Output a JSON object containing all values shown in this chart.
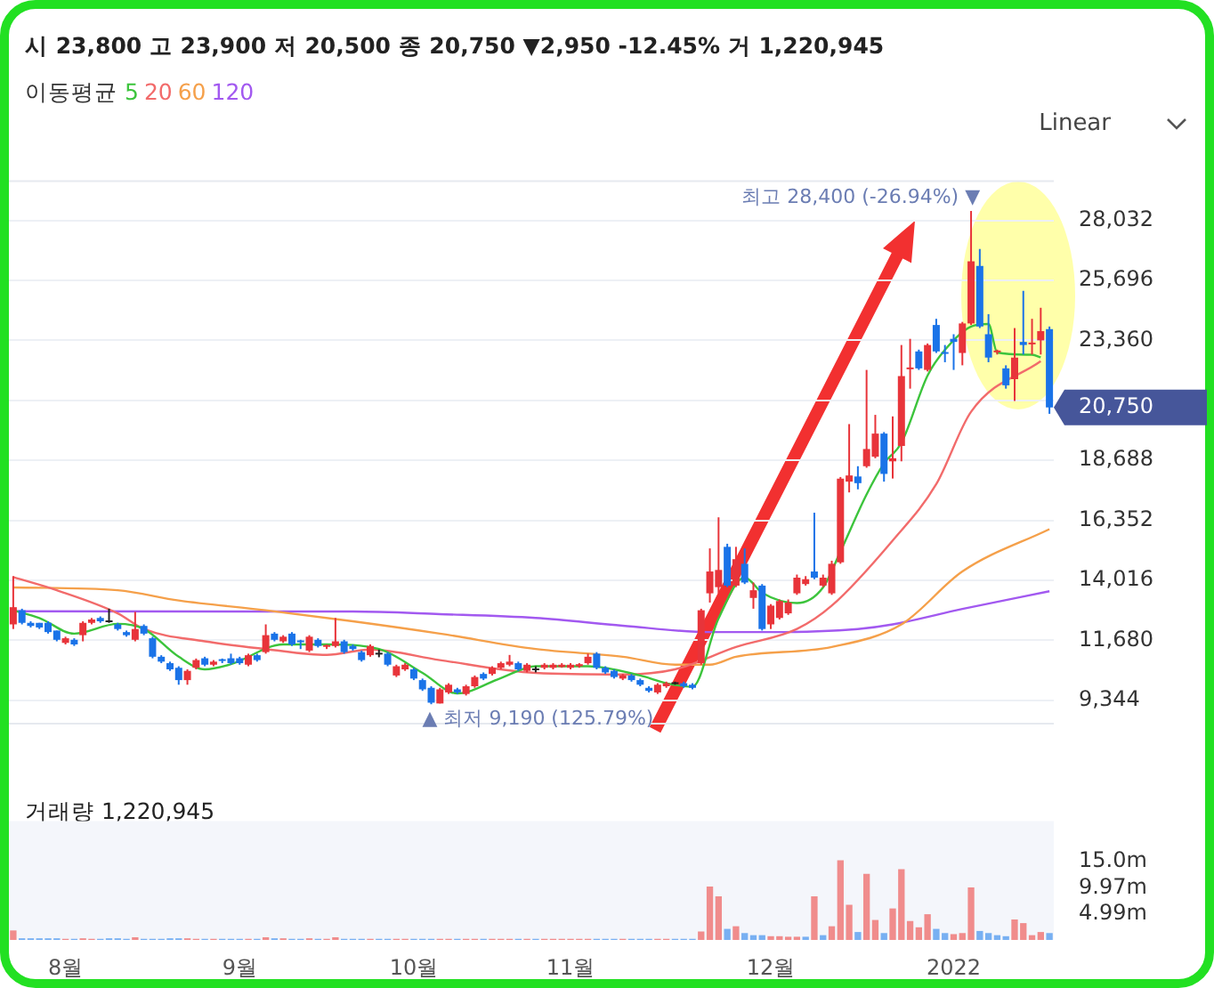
{
  "chart_data": [
    {
      "type": "candlestick",
      "subtitle": "시 23,800 고 23,900 저 20,500 종 20,750 ▼2,950 -12.45% 거 1,220,945",
      "legend_title": "이동평균",
      "legend": "top left",
      "categories": [
        null,
        null,
        null,
        null,
        null,
        null,
        null,
        null,
        null,
        null,
        null,
        null,
        null,
        null,
        null,
        null,
        null,
        null,
        null,
        null,
        null,
        null,
        null,
        null,
        null,
        null,
        null,
        null,
        null,
        null,
        null,
        null,
        null,
        null,
        null,
        null,
        null,
        null,
        null,
        null,
        null,
        null,
        null,
        null,
        null,
        null,
        null,
        null,
        null,
        null,
        null,
        null,
        null,
        null,
        null,
        null,
        null,
        null,
        null,
        null,
        null,
        null,
        null,
        null,
        null,
        null,
        null,
        null,
        null,
        null,
        null,
        null,
        null,
        null,
        null,
        null,
        null,
        null,
        null,
        null,
        null,
        null,
        null,
        null,
        null,
        null,
        null,
        null,
        null,
        null,
        null,
        null,
        null,
        null,
        null,
        null,
        null,
        null,
        null,
        null,
        null,
        null,
        null,
        null,
        null,
        null,
        null,
        null,
        null,
        null,
        null,
        null,
        null,
        null,
        null,
        null,
        null,
        null,
        null,
        null
      ],
      "ohlc": [
        [
          12300,
          14180,
          12120,
          12970
        ],
        [
          12850,
          12910,
          12300,
          12360
        ],
        [
          12360,
          12420,
          12180,
          12240
        ],
        [
          12360,
          12360,
          12120,
          12180
        ],
        [
          12360,
          12420,
          11940,
          12000
        ],
        [
          12060,
          12060,
          11640,
          11700
        ],
        [
          11580,
          11820,
          11520,
          11760
        ],
        [
          11700,
          11760,
          11460,
          11520
        ],
        [
          11880,
          12420,
          11640,
          12360
        ],
        [
          12360,
          12550,
          12300,
          12490
        ],
        [
          12550,
          12610,
          12360,
          12420
        ],
        [
          12420,
          12910,
          12360,
          12420
        ],
        [
          12300,
          12360,
          12060,
          12120
        ],
        [
          12000,
          12060,
          11820,
          11880
        ],
        [
          11700,
          12790,
          11640,
          12120
        ],
        [
          12240,
          12300,
          11880,
          11940
        ],
        [
          11760,
          11820,
          10980,
          11040
        ],
        [
          11040,
          11100,
          10790,
          10850
        ],
        [
          10790,
          10850,
          10490,
          10550
        ],
        [
          10610,
          10670,
          9950,
          10130
        ],
        [
          10130,
          10550,
          9950,
          10490
        ],
        [
          10610,
          10970,
          10550,
          10910
        ],
        [
          10980,
          11040,
          10670,
          10730
        ],
        [
          10730,
          10910,
          10670,
          10850
        ],
        [
          10910,
          10970,
          10790,
          10850
        ],
        [
          10980,
          11160,
          10730,
          10790
        ],
        [
          10980,
          11040,
          10730,
          10790
        ],
        [
          10730,
          11160,
          10670,
          11100
        ],
        [
          11100,
          11160,
          10850,
          10910
        ],
        [
          11220,
          12300,
          11160,
          11880
        ],
        [
          11940,
          12000,
          11640,
          11700
        ],
        [
          11640,
          11880,
          11580,
          11820
        ],
        [
          11940,
          12000,
          11460,
          11520
        ],
        [
          11640,
          11700,
          11340,
          11580
        ],
        [
          11280,
          11880,
          11220,
          11820
        ],
        [
          11700,
          11760,
          11400,
          11460
        ],
        [
          11400,
          11520,
          11340,
          11460
        ],
        [
          11460,
          12550,
          11400,
          11640
        ],
        [
          11640,
          11700,
          11160,
          11220
        ],
        [
          11460,
          11520,
          11280,
          11340
        ],
        [
          11220,
          11280,
          10850,
          10910
        ],
        [
          11100,
          11520,
          11040,
          11460
        ],
        [
          11160,
          11320,
          11020,
          11160
        ],
        [
          11160,
          11220,
          10670,
          10730
        ],
        [
          10310,
          10730,
          10250,
          10670
        ],
        [
          10550,
          10790,
          10490,
          10730
        ],
        [
          10550,
          10610,
          10130,
          10190
        ],
        [
          10130,
          10190,
          9710,
          9770
        ],
        [
          9830,
          9890,
          9190,
          9250
        ],
        [
          9220,
          9830,
          9220,
          9770
        ],
        [
          9650,
          10010,
          9590,
          9950
        ],
        [
          9770,
          9830,
          9590,
          9650
        ],
        [
          9590,
          9950,
          9530,
          9890
        ],
        [
          9890,
          10310,
          9830,
          10250
        ],
        [
          10370,
          10430,
          10130,
          10190
        ],
        [
          10370,
          10670,
          10310,
          10610
        ],
        [
          10610,
          10850,
          10550,
          10790
        ],
        [
          10730,
          11110,
          10670,
          10850
        ],
        [
          10790,
          10850,
          10490,
          10550
        ],
        [
          10490,
          10790,
          10430,
          10730
        ],
        [
          10550,
          10670,
          10430,
          10550
        ],
        [
          10610,
          10790,
          10550,
          10730
        ],
        [
          10610,
          10790,
          10550,
          10730
        ],
        [
          10640,
          10790,
          10610,
          10730
        ],
        [
          10610,
          10790,
          10550,
          10730
        ],
        [
          10670,
          10790,
          10610,
          10750
        ],
        [
          10790,
          11160,
          10730,
          11040
        ],
        [
          11160,
          11220,
          10550,
          10610
        ],
        [
          10610,
          10670,
          10370,
          10430
        ],
        [
          10490,
          10550,
          10190,
          10250
        ],
        [
          10190,
          10370,
          10130,
          10310
        ],
        [
          10310,
          10370,
          10070,
          10130
        ],
        [
          10130,
          10190,
          9890,
          9950
        ],
        [
          9830,
          9890,
          9650,
          9710
        ],
        [
          9650,
          10010,
          9590,
          9950
        ],
        [
          9890,
          10070,
          9830,
          10010
        ],
        [
          10010,
          10070,
          9950,
          10010
        ],
        [
          10010,
          10070,
          9830,
          9890
        ],
        [
          9950,
          10010,
          9770,
          9830
        ],
        [
          10790,
          12910,
          10730,
          12850
        ],
        [
          13510,
          15260,
          13150,
          14360
        ],
        [
          13750,
          16470,
          13510,
          14420
        ],
        [
          15320,
          15440,
          13750,
          13810
        ],
        [
          13810,
          15320,
          13750,
          14840
        ],
        [
          14660,
          15260,
          13870,
          13930
        ],
        [
          13330,
          13930,
          12910,
          13630
        ],
        [
          13810,
          13870,
          12060,
          12120
        ],
        [
          12300,
          13090,
          12120,
          13030
        ],
        [
          12550,
          13270,
          12490,
          13210
        ],
        [
          12730,
          13270,
          12670,
          13150
        ],
        [
          13510,
          14240,
          13450,
          14120
        ],
        [
          13870,
          14180,
          13810,
          14060
        ],
        [
          14360,
          16650,
          14060,
          14120
        ],
        [
          13810,
          14240,
          13750,
          14120
        ],
        [
          13510,
          14780,
          13450,
          14660
        ],
        [
          14720,
          18040,
          14660,
          17980
        ],
        [
          17860,
          20100,
          17440,
          18100
        ],
        [
          18060,
          18460,
          17560,
          17800
        ],
        [
          18460,
          22210,
          18400,
          19130
        ],
        [
          18830,
          20460,
          18770,
          19730
        ],
        [
          19730,
          19790,
          17860,
          18160
        ],
        [
          18650,
          20400,
          17980,
          18770
        ],
        [
          19250,
          23180,
          18650,
          21970
        ],
        [
          22210,
          23420,
          21480,
          22270
        ],
        [
          22930,
          23000,
          22210,
          22270
        ],
        [
          22210,
          23240,
          22150,
          23180
        ],
        [
          23960,
          24200,
          22870,
          22930
        ],
        [
          22870,
          23180,
          22510,
          22810
        ],
        [
          23420,
          23600,
          22210,
          23300
        ],
        [
          22870,
          24080,
          22390,
          24020
        ],
        [
          24020,
          28400,
          23960,
          26440
        ],
        [
          26260,
          26920,
          23840,
          23900
        ],
        [
          23600,
          24380,
          22510,
          22690
        ],
        [
          22870,
          23000,
          22810,
          22930
        ],
        [
          22270,
          22390,
          21480,
          21610
        ],
        [
          21850,
          23840,
          21000,
          22690
        ],
        [
          23300,
          25290,
          22810,
          23180
        ],
        [
          23180,
          24200,
          22810,
          23240
        ],
        [
          23360,
          24630,
          22810,
          23720
        ],
        [
          23800,
          23900,
          20500,
          20750
        ]
      ],
      "colors": [
        "#e8343a",
        "#1a73e8",
        "#1a73e8",
        "#1a73e8",
        "#1a73e8",
        "#1a73e8",
        "#e8343a",
        "#1a73e8",
        "#e8343a",
        "#e8343a",
        "#1a73e8",
        "#222222",
        "#1a73e8",
        "#1a73e8",
        "#e8343a",
        "#1a73e8",
        "#1a73e8",
        "#1a73e8",
        "#1a73e8",
        "#1a73e8",
        "#e8343a",
        "#e8343a",
        "#1a73e8",
        "#e8343a",
        "#1a73e8",
        "#1a73e8",
        "#1a73e8",
        "#e8343a",
        "#1a73e8",
        "#e8343a",
        "#1a73e8",
        "#e8343a",
        "#1a73e8",
        "#1a73e8",
        "#e8343a",
        "#1a73e8",
        "#e8343a",
        "#e8343a",
        "#1a73e8",
        "#1a73e8",
        "#1a73e8",
        "#e8343a",
        "#222222",
        "#1a73e8",
        "#e8343a",
        "#e8343a",
        "#1a73e8",
        "#1a73e8",
        "#1a73e8",
        "#e8343a",
        "#e8343a",
        "#1a73e8",
        "#e8343a",
        "#e8343a",
        "#1a73e8",
        "#e8343a",
        "#e8343a",
        "#e8343a",
        "#1a73e8",
        "#e8343a",
        "#222222",
        "#e8343a",
        "#e8343a",
        "#e8343a",
        "#e8343a",
        "#e8343a",
        "#e8343a",
        "#1a73e8",
        "#1a73e8",
        "#1a73e8",
        "#e8343a",
        "#1a73e8",
        "#1a73e8",
        "#1a73e8",
        "#e8343a",
        "#e8343a",
        "#222222",
        "#1a73e8",
        "#1a73e8",
        "#e8343a",
        "#e8343a",
        "#e8343a",
        "#1a73e8",
        "#e8343a",
        "#1a73e8",
        "#e8343a",
        "#1a73e8",
        "#e8343a",
        "#e8343a",
        "#e8343a",
        "#e8343a",
        "#e8343a",
        "#1a73e8",
        "#e8343a",
        "#e8343a",
        "#e8343a",
        "#e8343a",
        "#1a73e8",
        "#e8343a",
        "#e8343a",
        "#1a73e8",
        "#e8343a",
        "#e8343a",
        "#e8343a",
        "#1a73e8",
        "#e8343a",
        "#1a73e8",
        "#1a73e8",
        "#1a73e8",
        "#e8343a",
        "#e8343a",
        "#1a73e8",
        "#1a73e8",
        "#e8343a",
        "#1a73e8",
        "#e8343a",
        "#1a73e8",
        "#e8343a",
        "#e8343a",
        "#1a73e8"
      ],
      "series": [
        {
          "name": "5",
          "type": "line",
          "color": "#3cc43c",
          "values": [
            12850,
            null,
            null,
            12550,
            null,
            null,
            null,
            11940,
            null,
            null,
            null,
            null,
            12320,
            null,
            null,
            12120,
            null,
            null,
            null,
            11040,
            null,
            null,
            10550,
            null,
            null,
            10750,
            null,
            null,
            null,
            null,
            null,
            11520,
            null,
            null,
            null,
            null,
            11520,
            null,
            null,
            null,
            null,
            null,
            11340,
            null,
            null,
            null,
            null,
            10410,
            null,
            null,
            null,
            9610,
            null,
            null,
            null,
            null,
            10210,
            null,
            null,
            null,
            10670,
            null,
            null,
            null,
            null,
            null,
            10670,
            null,
            null,
            null,
            null,
            null,
            10310,
            null,
            null,
            10010,
            null,
            null,
            9870,
            null,
            null,
            12530,
            null,
            null,
            14130,
            null,
            13530,
            null,
            null,
            null,
            13130,
            null,
            null,
            13740,
            null,
            15140,
            null,
            null,
            17360,
            null,
            18570,
            null,
            19370,
            null,
            null,
            21990,
            null,
            22990,
            null,
            null,
            23900,
            null,
            24000,
            22890,
            null,
            null,
            null,
            22800,
            22700,
            null
          ]
        },
        {
          "name": "20",
          "type": "line",
          "color": "#f26b6b",
          "values": [
            14140,
            null,
            null,
            null,
            null,
            13630,
            null,
            null,
            null,
            null,
            null,
            null,
            12730,
            null,
            null,
            12120,
            null,
            null,
            null,
            null,
            null,
            null,
            11640,
            null,
            null,
            null,
            null,
            null,
            null,
            11340,
            null,
            null,
            null,
            null,
            null,
            null,
            11110,
            null,
            null,
            null,
            null,
            11320,
            null,
            null,
            null,
            null,
            null,
            null,
            null,
            10910,
            null,
            null,
            null,
            null,
            null,
            null,
            null,
            null,
            null,
            null,
            10410,
            null,
            null,
            null,
            null,
            null,
            null,
            null,
            null,
            null,
            10350,
            null,
            null,
            null,
            null,
            null,
            10550,
            null,
            null,
            null,
            null,
            null,
            null,
            11420,
            null,
            null,
            null,
            null,
            null,
            null,
            12120,
            null,
            null,
            null,
            13030,
            null,
            null,
            null,
            null,
            null,
            null,
            15570,
            null,
            null,
            null,
            null,
            17760,
            null,
            null,
            null,
            20580,
            null,
            null,
            null,
            null,
            null,
            null,
            null,
            22550,
            null
          ]
        },
        {
          "name": "60",
          "type": "line",
          "color": "#f5a04a",
          "values": [
            13740,
            null,
            null,
            null,
            null,
            null,
            null,
            null,
            null,
            null,
            null,
            null,
            13630,
            null,
            null,
            null,
            null,
            null,
            null,
            13230,
            null,
            null,
            null,
            null,
            null,
            null,
            null,
            null,
            null,
            12850,
            null,
            null,
            null,
            null,
            null,
            null,
            null,
            null,
            null,
            12420,
            null,
            null,
            null,
            null,
            null,
            null,
            null,
            null,
            null,
            11940,
            null,
            null,
            null,
            null,
            null,
            null,
            null,
            null,
            null,
            null,
            11340,
            null,
            null,
            null,
            null,
            null,
            null,
            null,
            null,
            null,
            11040,
            null,
            null,
            null,
            null,
            null,
            10730,
            null,
            null,
            null,
            10730,
            null,
            null,
            11040,
            null,
            null,
            null,
            null,
            null,
            null,
            null,
            null,
            null,
            null,
            11420,
            null,
            null,
            null,
            null,
            null,
            null,
            null,
            12300,
            null,
            null,
            null,
            null,
            null,
            null,
            14360,
            null,
            null,
            null,
            null,
            null,
            null,
            null,
            null,
            null,
            16010
          ]
        },
        {
          "name": "120",
          "type": "line",
          "color": "#a259f0",
          "values": [
            12810,
            null,
            null,
            null,
            null,
            null,
            null,
            null,
            null,
            null,
            null,
            null,
            null,
            null,
            null,
            null,
            null,
            null,
            null,
            null,
            null,
            null,
            null,
            null,
            null,
            null,
            null,
            null,
            null,
            null,
            null,
            null,
            null,
            null,
            null,
            null,
            null,
            null,
            null,
            12800,
            null,
            null,
            null,
            null,
            null,
            null,
            null,
            null,
            null,
            12700,
            null,
            null,
            null,
            null,
            null,
            null,
            null,
            null,
            null,
            null,
            12550,
            null,
            null,
            null,
            null,
            null,
            null,
            null,
            null,
            null,
            12250,
            null,
            null,
            null,
            null,
            null,
            null,
            null,
            null,
            null,
            12000,
            null,
            null,
            null,
            null,
            null,
            null,
            12000,
            null,
            null,
            null,
            null,
            null,
            null,
            null,
            null,
            null,
            12120,
            null,
            null,
            null,
            12300,
            null,
            null,
            null,
            null,
            null,
            null,
            null,
            12900,
            null,
            null,
            null,
            null,
            null,
            null,
            null,
            null,
            null,
            13590
          ]
        }
      ],
      "ylim": [
        8400,
        29600
      ],
      "yticks": [
        {
          "value": 9344,
          "label": "9,344"
        },
        {
          "value": 11680,
          "label": "11,680"
        },
        {
          "value": 14016,
          "label": "14,016"
        },
        {
          "value": 16352,
          "label": "16,352"
        },
        {
          "value": 18688,
          "label": "18,688"
        },
        {
          "value": 21024,
          "label": null
        },
        {
          "value": 23360,
          "label": "23,360"
        },
        {
          "value": 25696,
          "label": "25,696"
        },
        {
          "value": 28032,
          "label": "28,032"
        }
      ],
      "tick_labels": "y",
      "grid": "y",
      "annotations": [
        "최고 28,400 (-26.94%) ▼",
        "▲ 최저 9,190 (125.79%)",
        "20,750",
        "Linear"
      ]
    },
    {
      "type": "bar",
      "title": "거래량 1,220,945",
      "categories": [
        null,
        null,
        null,
        null,
        null,
        null,
        "8월",
        null,
        null,
        null,
        null,
        null,
        null,
        null,
        null,
        null,
        null,
        null,
        null,
        null,
        null,
        null,
        null,
        null,
        null,
        null,
        "9월",
        null,
        null,
        null,
        null,
        null,
        null,
        null,
        null,
        null,
        null,
        null,
        null,
        null,
        null,
        null,
        null,
        null,
        null,
        null,
        "10월",
        null,
        null,
        null,
        null,
        null,
        null,
        null,
        null,
        null,
        null,
        null,
        null,
        null,
        null,
        null,
        null,
        null,
        "11월",
        null,
        null,
        null,
        null,
        null,
        null,
        null,
        null,
        null,
        null,
        null,
        null,
        null,
        null,
        null,
        null,
        null,
        null,
        null,
        null,
        null,
        null,
        "12월",
        null,
        null,
        null,
        null,
        null,
        null,
        null,
        null,
        null,
        null,
        null,
        null,
        null,
        null,
        null,
        null,
        null,
        null,
        null,
        null,
        "2022",
        null,
        null,
        null,
        null,
        null,
        null,
        null,
        null,
        null,
        null,
        null
      ],
      "values": [
        1.7,
        0.2,
        0.2,
        0.2,
        0.2,
        0.2,
        0.1,
        0.1,
        0.2,
        0.1,
        0.1,
        0.2,
        0.2,
        0.1,
        0.4,
        0.1,
        0.1,
        0.1,
        0.2,
        0.2,
        0.2,
        0.1,
        0.1,
        0.1,
        0.1,
        0.1,
        0.1,
        0.1,
        0.1,
        0.4,
        0.2,
        0.2,
        0.1,
        0.1,
        0.2,
        0.1,
        0.1,
        0.4,
        0.1,
        0.1,
        0.1,
        0.1,
        0.1,
        0.1,
        0.1,
        0.1,
        0.1,
        0.1,
        0.1,
        0.1,
        0.1,
        0.1,
        0.1,
        0.1,
        0.1,
        0.1,
        0.1,
        0.1,
        0.1,
        0.1,
        0.1,
        0.1,
        0.1,
        0.1,
        0.1,
        0.1,
        0.1,
        0.1,
        0.1,
        0.1,
        0.1,
        0.1,
        0.1,
        0.1,
        0.1,
        0.1,
        0.1,
        0.1,
        0.1,
        1.5,
        10.1,
        8.2,
        2.0,
        2.5,
        1.2,
        0.8,
        0.8,
        0.6,
        0.6,
        0.5,
        0.5,
        0.5,
        8.2,
        0.8,
        2.5,
        15.1,
        6.6,
        1.4,
        12.5,
        3.7,
        1.2,
        5.9,
        13.4,
        3.5,
        2.3,
        4.8,
        2.0,
        1.2,
        1.0,
        1.2,
        9.9,
        1.6,
        1.2,
        0.8,
        0.6,
        3.8,
        3.1,
        0.8,
        1.4,
        1.2
      ],
      "colors": [
        "#f08c8c",
        "#78b0f2",
        "#78b0f2",
        "#78b0f2",
        "#78b0f2",
        "#78b0f2",
        "#f08c8c",
        "#78b0f2",
        "#f08c8c",
        "#f08c8c",
        "#78b0f2",
        "#78b0f2",
        "#78b0f2",
        "#78b0f2",
        "#f08c8c",
        "#78b0f2",
        "#78b0f2",
        "#78b0f2",
        "#78b0f2",
        "#78b0f2",
        "#f08c8c",
        "#f08c8c",
        "#78b0f2",
        "#f08c8c",
        "#78b0f2",
        "#78b0f2",
        "#78b0f2",
        "#f08c8c",
        "#78b0f2",
        "#f08c8c",
        "#78b0f2",
        "#f08c8c",
        "#78b0f2",
        "#78b0f2",
        "#f08c8c",
        "#78b0f2",
        "#f08c8c",
        "#f08c8c",
        "#78b0f2",
        "#78b0f2",
        "#78b0f2",
        "#f08c8c",
        "#78b0f2",
        "#78b0f2",
        "#f08c8c",
        "#f08c8c",
        "#78b0f2",
        "#78b0f2",
        "#78b0f2",
        "#f08c8c",
        "#f08c8c",
        "#78b0f2",
        "#f08c8c",
        "#f08c8c",
        "#78b0f2",
        "#f08c8c",
        "#f08c8c",
        "#f08c8c",
        "#78b0f2",
        "#f08c8c",
        "#78b0f2",
        "#f08c8c",
        "#f08c8c",
        "#f08c8c",
        "#f08c8c",
        "#f08c8c",
        "#f08c8c",
        "#78b0f2",
        "#78b0f2",
        "#78b0f2",
        "#f08c8c",
        "#78b0f2",
        "#78b0f2",
        "#78b0f2",
        "#f08c8c",
        "#f08c8c",
        "#78b0f2",
        "#78b0f2",
        "#78b0f2",
        "#f08c8c",
        "#f08c8c",
        "#f08c8c",
        "#78b0f2",
        "#f08c8c",
        "#78b0f2",
        "#78b0f2",
        "#78b0f2",
        "#f08c8c",
        "#f08c8c",
        "#f08c8c",
        "#f08c8c",
        "#78b0f2",
        "#f08c8c",
        "#78b0f2",
        "#f08c8c",
        "#f08c8c",
        "#f08c8c",
        "#78b0f2",
        "#f08c8c",
        "#f08c8c",
        "#78b0f2",
        "#f08c8c",
        "#f08c8c",
        "#f08c8c",
        "#f08c8c",
        "#f08c8c",
        "#78b0f2",
        "#78b0f2",
        "#f08c8c",
        "#f08c8c",
        "#f08c8c",
        "#78b0f2",
        "#78b0f2",
        "#78b0f2",
        "#78b0f2",
        "#f08c8c",
        "#f08c8c",
        "#f08c8c",
        "#f08c8c",
        "#78b0f2"
      ],
      "ylim": [
        0,
        22.7
      ],
      "yticks": [
        {
          "value": 4.99,
          "label": "4.99m"
        },
        {
          "value": 9.97,
          "label": "9.97m"
        },
        {
          "value": 15.0,
          "label": "15.0m"
        }
      ]
    }
  ]
}
